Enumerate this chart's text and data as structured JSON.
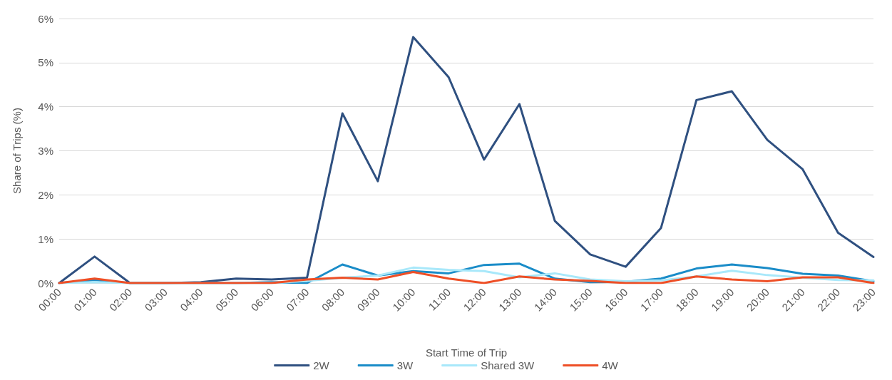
{
  "chart_data": {
    "type": "line",
    "xlabel": "Start Time of Trip",
    "ylabel": "Share of Trips (%)",
    "categories": [
      "00:00",
      "01:00",
      "02:00",
      "03:00",
      "04:00",
      "05:00",
      "06:00",
      "07:00",
      "08:00",
      "09:00",
      "10:00",
      "11:00",
      "12:00",
      "13:00",
      "14:00",
      "15:00",
      "16:00",
      "17:00",
      "18:00",
      "19:00",
      "20:00",
      "21:00",
      "22:00",
      "23:00"
    ],
    "series": [
      {
        "name": "2W",
        "color": "#2f5080",
        "values": [
          0,
          0.6,
          0,
          0,
          0.02,
          0.1,
          0.08,
          0.12,
          3.85,
          2.31,
          5.58,
          4.67,
          2.8,
          4.06,
          1.41,
          0.65,
          0.37,
          1.25,
          4.15,
          4.35,
          3.25,
          2.58,
          1.14,
          0.59
        ]
      },
      {
        "name": "3W",
        "color": "#1a8cc8",
        "values": [
          0,
          0.07,
          0,
          0,
          0,
          0,
          0.02,
          0,
          0.42,
          0.17,
          0.27,
          0.22,
          0.41,
          0.44,
          0.1,
          0.02,
          0.03,
          0.1,
          0.33,
          0.42,
          0.34,
          0.21,
          0.17,
          0.04
        ]
      },
      {
        "name": "Shared 3W",
        "color": "#a8e8fa",
        "values": [
          0,
          0.02,
          0,
          0,
          0,
          0,
          0,
          0.05,
          0.12,
          0.17,
          0.35,
          0.3,
          0.27,
          0.13,
          0.22,
          0.08,
          0.04,
          0.06,
          0.15,
          0.28,
          0.18,
          0.12,
          0.07,
          0.06
        ]
      },
      {
        "name": "4W",
        "color": "#ee4f26",
        "values": [
          0,
          0.1,
          0,
          0,
          0,
          0,
          0,
          0.08,
          0.12,
          0.08,
          0.25,
          0.1,
          0,
          0.15,
          0.08,
          0.05,
          0,
          0,
          0.15,
          0.08,
          0.04,
          0.13,
          0.13,
          0
        ]
      }
    ],
    "ylim": [
      0,
      6
    ],
    "yticks": [
      {
        "value": 0,
        "label": "0%"
      },
      {
        "value": 1,
        "label": "1%"
      },
      {
        "value": 2,
        "label": "2%"
      },
      {
        "value": 3,
        "label": "3%"
      },
      {
        "value": 4,
        "label": "4%"
      },
      {
        "value": 5,
        "label": "5%"
      },
      {
        "value": 6,
        "label": "6%"
      }
    ],
    "grid": "y",
    "legend": "bottom",
    "marker": "none",
    "line_style": "solid"
  }
}
